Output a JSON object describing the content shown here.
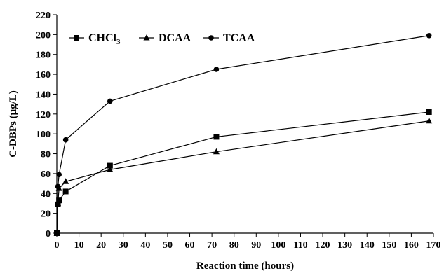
{
  "chart_data": {
    "type": "line",
    "xlabel": "Reaction time (hours)",
    "ylabel": "C-DBPs (μg/L)",
    "xlim": [
      0,
      170
    ],
    "ylim": [
      0,
      220
    ],
    "x_ticks": [
      0,
      10,
      20,
      30,
      40,
      50,
      60,
      70,
      80,
      90,
      100,
      110,
      120,
      130,
      140,
      150,
      160,
      170
    ],
    "y_ticks": [
      0,
      20,
      40,
      60,
      80,
      100,
      120,
      140,
      160,
      180,
      200,
      220
    ],
    "grid": false,
    "legend_position": "top-left",
    "series": [
      {
        "name_main": "CHCl",
        "name_sub": "3",
        "marker": "square",
        "x": [
          0,
          0.5,
          1,
          4,
          24,
          72,
          168
        ],
        "y": [
          0,
          29,
          33,
          42,
          68,
          97,
          122
        ]
      },
      {
        "name": "DCAA",
        "marker": "triangle",
        "x": [
          0,
          0.5,
          1,
          4,
          24,
          72,
          168
        ],
        "y": [
          0,
          30,
          45,
          52,
          64,
          82,
          113
        ]
      },
      {
        "name": "TCAA",
        "marker": "circle",
        "x": [
          0,
          0.5,
          1,
          4,
          24,
          72,
          168
        ],
        "y": [
          0,
          47,
          59,
          94,
          133,
          165,
          199
        ]
      }
    ]
  }
}
